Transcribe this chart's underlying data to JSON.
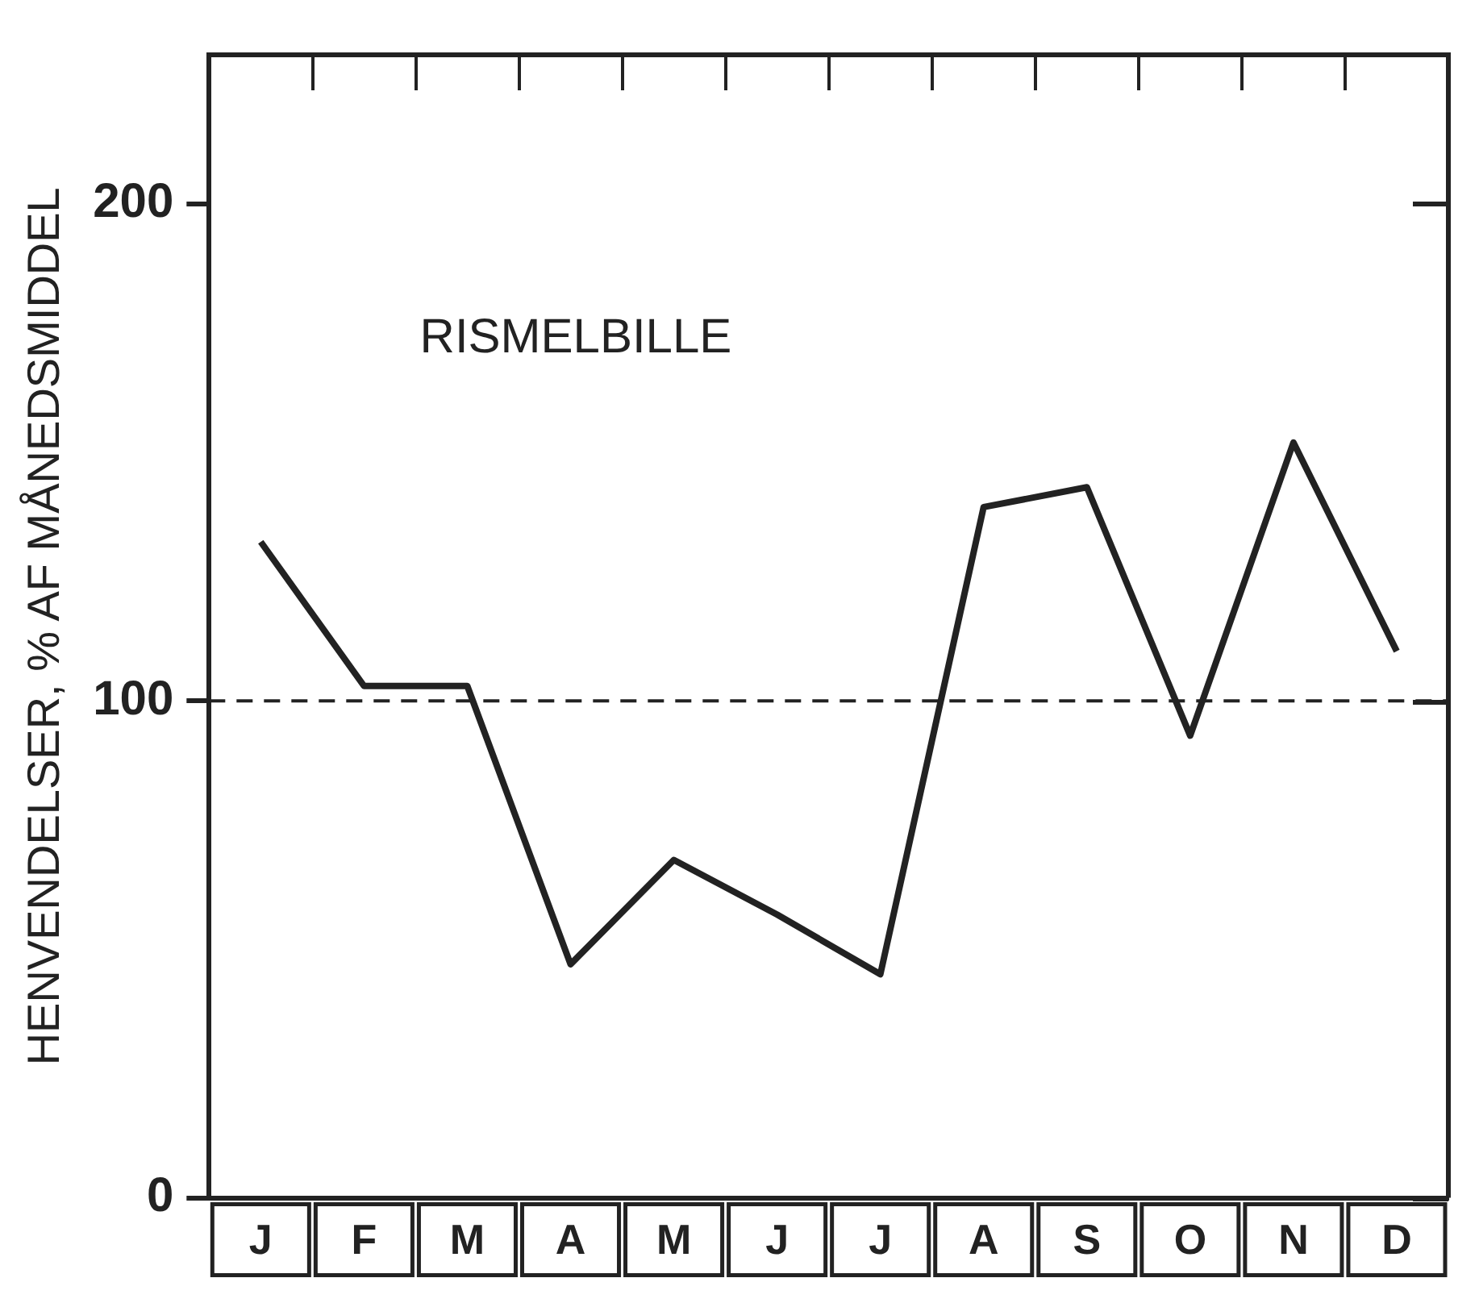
{
  "chart_data": {
    "type": "line",
    "ylabel": "HENVENDELSER, % AF MÅNEDSMIDDEL",
    "annotations": [
      "RISMELBILLE"
    ],
    "categories": [
      "J",
      "F",
      "M",
      "A",
      "M",
      "J",
      "J",
      "A",
      "S",
      "O",
      "N",
      "D"
    ],
    "series": [
      {
        "color": "#222222",
        "values": [
          132,
          103,
          103,
          47,
          68,
          57,
          45,
          139,
          143,
          93,
          152,
          110
        ]
      }
    ],
    "ylim": [
      0,
      230
    ],
    "yticks": [
      0,
      100,
      200
    ],
    "ref_lines": [
      {
        "axis": "y",
        "value": 100,
        "line_style": "dashed"
      }
    ],
    "grid": false,
    "legend": false,
    "marker": "none",
    "line_style": "solid"
  }
}
